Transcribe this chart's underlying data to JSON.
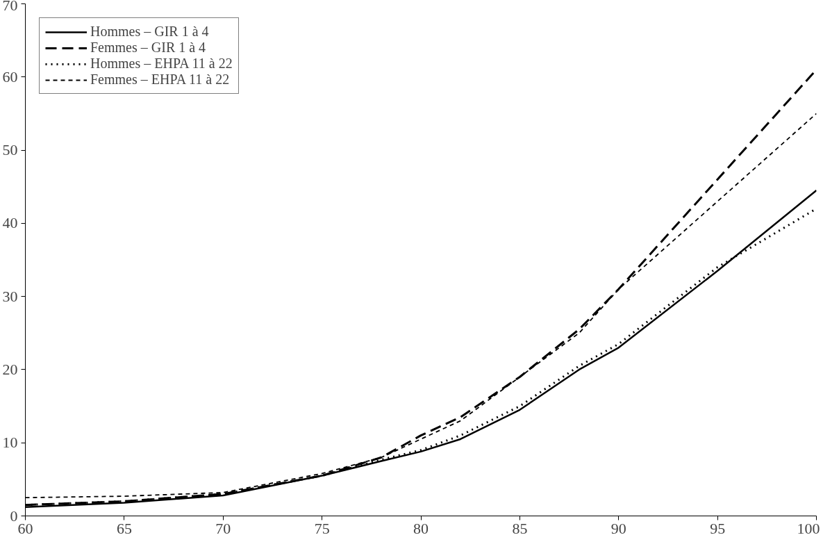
{
  "chart_data": {
    "type": "line",
    "x": [
      60,
      65,
      70,
      75,
      78,
      80,
      82,
      85,
      88,
      90,
      95,
      100
    ],
    "series": [
      {
        "name": "Hommes – GIR 1 à 4",
        "color": "#000000",
        "line_style": "solid",
        "values": [
          1.2,
          1.8,
          2.8,
          5.5,
          7.5,
          8.8,
          10.5,
          14.5,
          20,
          23,
          33.5,
          44.5
        ]
      },
      {
        "name": "Femmes – GIR 1 à 4",
        "color": "#000000",
        "line_style": "dashed",
        "values": [
          1.5,
          2,
          3,
          5.5,
          8,
          11,
          13.5,
          19,
          25.5,
          31,
          46,
          61
        ]
      },
      {
        "name": "Hommes – EHPA 11 à 22",
        "color": "#000000",
        "line_style": "dotted",
        "values": [
          1.5,
          2,
          3,
          5.5,
          7.7,
          9,
          11,
          15,
          20.5,
          23.5,
          34,
          42
        ]
      },
      {
        "name": "Femmes – EHPA 11 à 22",
        "color": "#000000",
        "line_style": "shortdash",
        "values": [
          2.5,
          2.7,
          3.2,
          5.8,
          8,
          10.5,
          13,
          19,
          25,
          31,
          43,
          55
        ]
      }
    ],
    "xlim": [
      60,
      100
    ],
    "xticks": [
      60,
      65,
      70,
      75,
      80,
      85,
      90,
      95,
      100
    ],
    "ylim": [
      0,
      70
    ],
    "yticks": [
      0,
      10,
      20,
      30,
      40,
      50,
      60,
      70
    ],
    "legend": "top left",
    "grid": false
  }
}
